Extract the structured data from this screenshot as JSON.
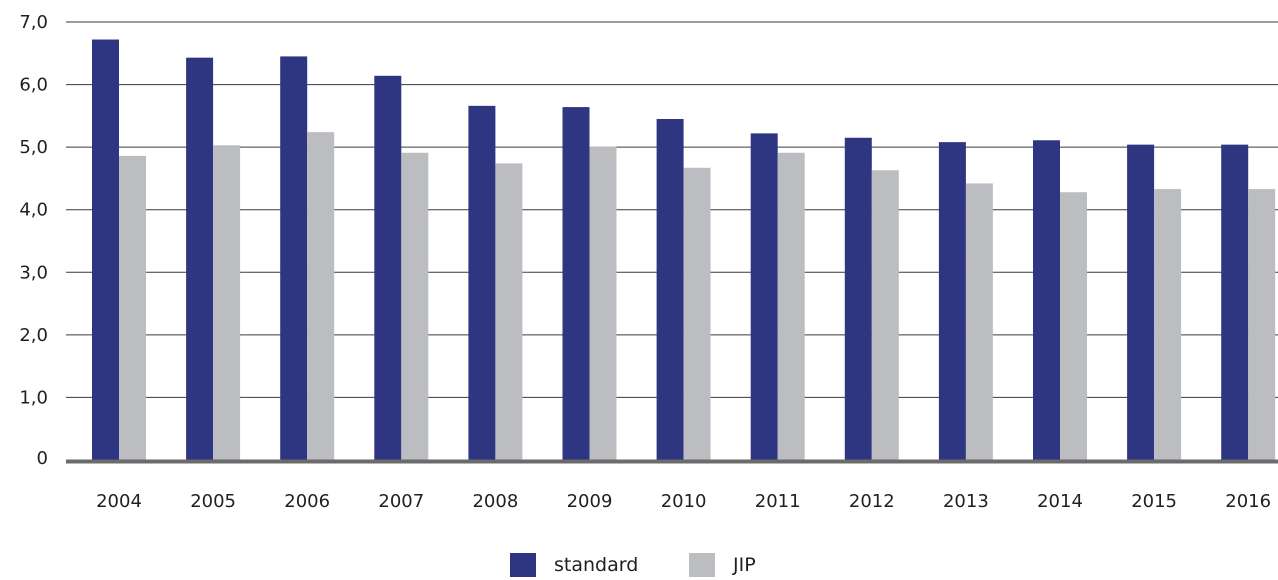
{
  "chart_data": {
    "type": "bar",
    "categories": [
      "2004",
      "2005",
      "2006",
      "2007",
      "2008",
      "2009",
      "2010",
      "2011",
      "2012",
      "2013",
      "2014",
      "2015",
      "2016"
    ],
    "series": [
      {
        "name": "standard",
        "color": "#2e3681",
        "values": [
          6.72,
          6.43,
          6.45,
          6.14,
          5.66,
          5.64,
          5.45,
          5.22,
          5.15,
          5.08,
          5.11,
          5.04,
          5.04
        ]
      },
      {
        "name": "JIP",
        "color": "#bcbdc0",
        "values": [
          4.86,
          5.03,
          5.24,
          4.91,
          4.74,
          5.01,
          4.67,
          4.91,
          4.63,
          4.42,
          4.28,
          4.33,
          4.33
        ]
      }
    ],
    "ylim": [
      0,
      7
    ],
    "yticks": [
      0,
      1,
      2,
      3,
      4,
      5,
      6,
      7
    ],
    "ytick_labels": [
      "0",
      "1,0",
      "2,0",
      "3,0",
      "4,0",
      "5,0",
      "6,0",
      "7,0"
    ],
    "grid": true,
    "legend_position": "bottom-center"
  }
}
